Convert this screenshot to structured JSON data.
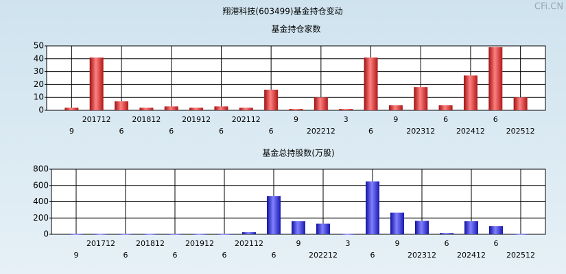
{
  "title": "翔港科技(603499)基金持仓变动",
  "watermark": "CFi.CN",
  "chart_data": [
    {
      "type": "bar",
      "title": "基金持仓家数",
      "categories": [
        "9",
        "201712",
        "6",
        "201812",
        "6",
        "201912",
        "6",
        "202112",
        "6",
        "9",
        "202212",
        "3",
        "6",
        "9",
        "202312",
        "6",
        "202412",
        "6",
        "202512"
      ],
      "values": [
        2,
        41,
        7,
        2,
        3,
        2,
        3,
        2,
        16,
        1,
        10,
        1,
        41,
        4,
        18,
        4,
        27,
        49,
        10
      ],
      "color": "#e02020",
      "ylim": [
        0,
        50
      ],
      "yticks": [
        0,
        10,
        20,
        30,
        40,
        50
      ],
      "grid": true
    },
    {
      "type": "bar",
      "title": "基金总持股数(万股)",
      "categories": [
        "9",
        "201712",
        "6",
        "201812",
        "6",
        "201912",
        "6",
        "202112",
        "6",
        "9",
        "202212",
        "3",
        "6",
        "9",
        "202312",
        "6",
        "202412",
        "6",
        "202512"
      ],
      "values": [
        3,
        3,
        3,
        3,
        3,
        3,
        3,
        25,
        470,
        160,
        130,
        3,
        650,
        265,
        165,
        15,
        160,
        100,
        3
      ],
      "color": "#2828d0",
      "ylim": [
        0,
        800
      ],
      "yticks": [
        0,
        200,
        400,
        600,
        800
      ],
      "grid": true
    }
  ]
}
